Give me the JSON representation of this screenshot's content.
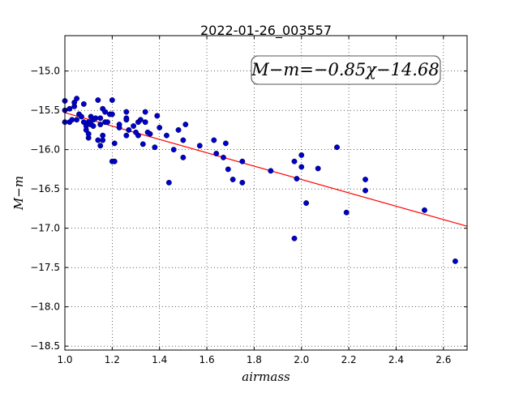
{
  "chart_data": {
    "type": "scatter",
    "title": "2022-01-26_003557",
    "xlabel": "airmass",
    "ylabel": "M−m",
    "xlim": [
      1.0,
      2.7
    ],
    "ylim": [
      -18.55,
      -14.55
    ],
    "x_ticks": [
      1.0,
      1.2,
      1.4,
      1.6,
      1.8,
      2.0,
      2.2,
      2.4,
      2.6
    ],
    "x_tick_labels": [
      "1.0",
      "1.2",
      "1.4",
      "1.6",
      "1.8",
      "2.0",
      "2.2",
      "2.4",
      "2.6"
    ],
    "y_ticks": [
      -15.0,
      -15.5,
      -16.0,
      -16.5,
      -17.0,
      -17.5,
      -18.0,
      -18.5
    ],
    "y_tick_labels": [
      "−15.0",
      "−15.5",
      "−16.0",
      "−16.5",
      "−17.0",
      "−17.5",
      "−18.0",
      "−18.5"
    ],
    "grid": true,
    "annotation": "M−m=−0.85χ−14.68",
    "fit_line": {
      "slope": -0.85,
      "intercept": -14.68,
      "color": "#ff0000"
    },
    "point_color": "#0000cc",
    "points": [
      [
        1.0,
        -15.38
      ],
      [
        1.0,
        -15.5
      ],
      [
        1.0,
        -15.65
      ],
      [
        1.02,
        -15.48
      ],
      [
        1.02,
        -15.65
      ],
      [
        1.03,
        -15.62
      ],
      [
        1.04,
        -15.4
      ],
      [
        1.04,
        -15.45
      ],
      [
        1.05,
        -15.35
      ],
      [
        1.05,
        -15.62
      ],
      [
        1.06,
        -15.55
      ],
      [
        1.07,
        -15.58
      ],
      [
        1.08,
        -15.42
      ],
      [
        1.08,
        -15.65
      ],
      [
        1.09,
        -15.7
      ],
      [
        1.09,
        -15.75
      ],
      [
        1.1,
        -15.65
      ],
      [
        1.1,
        -15.85
      ],
      [
        1.1,
        -15.8
      ],
      [
        1.11,
        -15.58
      ],
      [
        1.11,
        -15.68
      ],
      [
        1.12,
        -15.62
      ],
      [
        1.12,
        -15.7
      ],
      [
        1.13,
        -15.6
      ],
      [
        1.14,
        -15.37
      ],
      [
        1.14,
        -15.88
      ],
      [
        1.15,
        -15.6
      ],
      [
        1.15,
        -15.68
      ],
      [
        1.15,
        -15.95
      ],
      [
        1.16,
        -15.48
      ],
      [
        1.16,
        -15.82
      ],
      [
        1.16,
        -15.88
      ],
      [
        1.17,
        -15.52
      ],
      [
        1.17,
        -15.65
      ],
      [
        1.18,
        -15.65
      ],
      [
        1.19,
        -15.55
      ],
      [
        1.2,
        -15.37
      ],
      [
        1.2,
        -15.55
      ],
      [
        1.2,
        -16.15
      ],
      [
        1.21,
        -15.92
      ],
      [
        1.21,
        -16.15
      ],
      [
        1.23,
        -15.68
      ],
      [
        1.23,
        -15.72
      ],
      [
        1.26,
        -15.52
      ],
      [
        1.26,
        -15.6
      ],
      [
        1.26,
        -15.62
      ],
      [
        1.26,
        -15.82
      ],
      [
        1.27,
        -15.75
      ],
      [
        1.29,
        -15.7
      ],
      [
        1.3,
        -15.78
      ],
      [
        1.31,
        -15.65
      ],
      [
        1.31,
        -15.82
      ],
      [
        1.32,
        -15.62
      ],
      [
        1.33,
        -15.93
      ],
      [
        1.34,
        -15.52
      ],
      [
        1.34,
        -15.65
      ],
      [
        1.35,
        -15.78
      ],
      [
        1.36,
        -15.8
      ],
      [
        1.38,
        -15.97
      ],
      [
        1.39,
        -15.57
      ],
      [
        1.4,
        -15.72
      ],
      [
        1.43,
        -15.82
      ],
      [
        1.44,
        -16.42
      ],
      [
        1.46,
        -16.0
      ],
      [
        1.48,
        -15.75
      ],
      [
        1.5,
        -15.88
      ],
      [
        1.5,
        -16.1
      ],
      [
        1.51,
        -15.68
      ],
      [
        1.57,
        -15.95
      ],
      [
        1.63,
        -15.88
      ],
      [
        1.64,
        -16.05
      ],
      [
        1.67,
        -16.1
      ],
      [
        1.68,
        -15.92
      ],
      [
        1.69,
        -16.25
      ],
      [
        1.71,
        -16.38
      ],
      [
        1.75,
        -16.15
      ],
      [
        1.75,
        -16.42
      ],
      [
        1.87,
        -16.27
      ],
      [
        1.97,
        -16.15
      ],
      [
        1.97,
        -17.13
      ],
      [
        1.98,
        -16.37
      ],
      [
        2.0,
        -16.22
      ],
      [
        2.0,
        -16.07
      ],
      [
        2.02,
        -16.68
      ],
      [
        2.07,
        -16.24
      ],
      [
        2.15,
        -15.97
      ],
      [
        2.19,
        -16.8
      ],
      [
        2.27,
        -16.38
      ],
      [
        2.27,
        -16.52
      ],
      [
        2.52,
        -16.77
      ],
      [
        2.65,
        -17.42
      ]
    ]
  }
}
